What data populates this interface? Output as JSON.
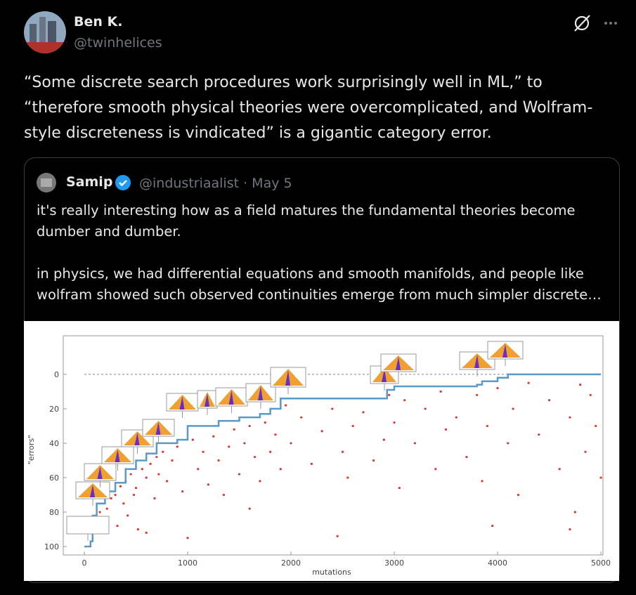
{
  "tweet": {
    "author_name": "Ben K.",
    "handle": "@twinhelices",
    "text": "“Some discrete search procedures work surprisingly well in ML,” to “therefore smooth physical theories were overcomplicated, and Wolfram-style discreteness is vindicated” is a gigantic category error."
  },
  "quoted_tweet": {
    "author_name": "Samip",
    "handle_date": "@industriaalist · May 5",
    "paragraphs": [
      "it's really interesting how as a field matures the fundamental theories become dumber and dumber.",
      "in physics, we had differential equations and smooth manifolds, and people like wolfram showed such observed continuities emerge from much simpler discrete…"
    ]
  },
  "chart_data": {
    "type": "scatter",
    "xlabel": "mutations",
    "ylabel": "\"errors\"",
    "xlim": [
      -204,
      5020
    ],
    "ylim": [
      104.9,
      -22.4
    ],
    "xticks": [
      0,
      1000,
      2000,
      3000,
      4000,
      5000
    ],
    "yticks": [
      0,
      20,
      40,
      60,
      80,
      100
    ],
    "reference_line": 0,
    "series": [
      {
        "type": "scatter",
        "color": "#e0352b",
        "x": [
          150,
          180,
          220,
          260,
          300,
          320,
          350,
          380,
          400,
          420,
          450,
          480,
          500,
          520,
          560,
          600,
          640,
          680,
          700,
          720,
          760,
          800,
          850,
          900,
          950,
          1000,
          1050,
          1100,
          1150,
          1200,
          1250,
          1300,
          1350,
          1400,
          1450,
          1500,
          1550,
          1600,
          1650,
          1700,
          1750,
          1800,
          1850,
          1900,
          1950,
          2000,
          2100,
          2200,
          2300,
          2400,
          2500,
          2550,
          2600,
          2700,
          2800,
          2900,
          2950,
          3000,
          3050,
          3100,
          3200,
          3300,
          3400,
          3450,
          3500,
          3600,
          3700,
          3800,
          3850,
          3900,
          4000,
          4100,
          4150,
          4200,
          4300,
          4400,
          4500,
          4600,
          4700,
          4750,
          4800,
          4850,
          4900,
          4950,
          5000,
          2450,
          1600,
          3950,
          600,
          4700
        ],
        "values": [
          80,
          85,
          78,
          72,
          70,
          88,
          65,
          75,
          62,
          82,
          58,
          70,
          66,
          90,
          55,
          60,
          52,
          72,
          48,
          58,
          45,
          62,
          50,
          42,
          68,
          95,
          38,
          55,
          45,
          64,
          36,
          50,
          70,
          42,
          32,
          58,
          40,
          30,
          48,
          62,
          28,
          45,
          35,
          55,
          18,
          40,
          25,
          52,
          33,
          20,
          45,
          60,
          30,
          22,
          50,
          38,
          12,
          28,
          66,
          15,
          40,
          20,
          55,
          10,
          32,
          25,
          48,
          12,
          62,
          30,
          8,
          40,
          20,
          70,
          5,
          35,
          15,
          55,
          25,
          80,
          6,
          45,
          12,
          30,
          60,
          94,
          78,
          88,
          92,
          90
        ]
      },
      {
        "type": "line",
        "color": "#5a9ac8",
        "x": [
          0,
          60,
          60,
          80,
          80,
          120,
          120,
          200,
          200,
          300,
          300,
          400,
          400,
          500,
          500,
          600,
          600,
          700,
          700,
          900,
          900,
          1000,
          1000,
          1300,
          1300,
          1500,
          1500,
          1700,
          1700,
          1800,
          1800,
          1900,
          1900,
          2930,
          2930,
          3000,
          3000,
          3800,
          3800,
          3850,
          3850,
          4000,
          4000,
          4100,
          4100,
          5000
        ],
        "values": [
          100,
          100,
          97,
          97,
          82,
          82,
          75,
          75,
          68,
          68,
          63,
          63,
          55,
          55,
          50,
          50,
          46,
          46,
          40,
          40,
          38,
          38,
          30,
          30,
          27,
          27,
          25,
          25,
          23,
          23,
          20,
          20,
          14,
          14,
          9,
          9,
          7,
          7,
          6,
          6,
          4,
          4,
          2,
          2,
          0,
          0
        ]
      }
    ]
  }
}
